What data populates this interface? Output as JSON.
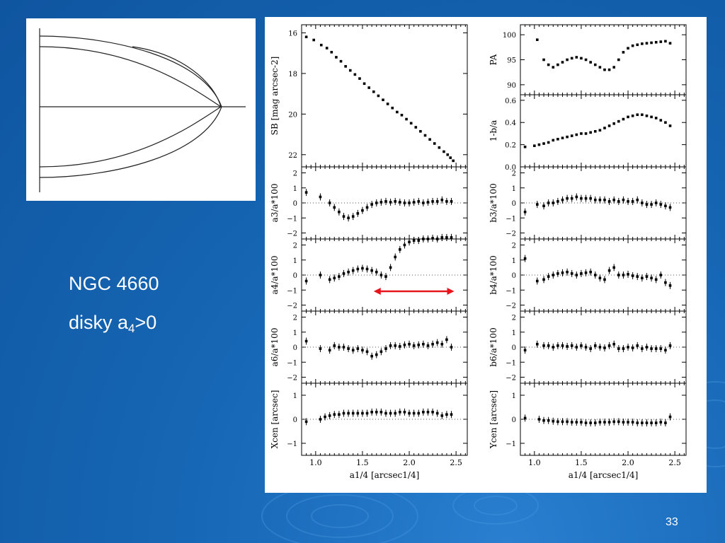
{
  "slide": {
    "caption": {
      "name": "NGC 4660",
      "line2_prefix": "disky a",
      "line2_sub": "4",
      "line2_suffix": ">0"
    },
    "slide_number": "33",
    "colors": {
      "background": "#1667b5",
      "arrow": "#e8141c",
      "text": "#ffffff"
    }
  },
  "x_axis": {
    "label": "a1/4 [arcsec1/4]",
    "ticks": [
      "1.0",
      "1.5",
      "2.0",
      "2.5"
    ]
  },
  "chart_data": [
    {
      "type": "scatter",
      "panel": "SB",
      "ylabel": "SB [mag arcsec-2]",
      "y_inverted": true,
      "ylim": [
        15.6,
        22.6
      ],
      "yticks": [
        "16",
        "18",
        "20",
        "22"
      ],
      "x": [
        0.9,
        0.98,
        1.06,
        1.12,
        1.17,
        1.22,
        1.27,
        1.32,
        1.37,
        1.42,
        1.47,
        1.52,
        1.57,
        1.62,
        1.67,
        1.72,
        1.77,
        1.82,
        1.87,
        1.92,
        1.97,
        2.02,
        2.07,
        2.12,
        2.17,
        2.22,
        2.27,
        2.32,
        2.37,
        2.41,
        2.44,
        2.47
      ],
      "y": [
        16.2,
        16.35,
        16.6,
        16.75,
        16.95,
        17.2,
        17.4,
        17.65,
        17.85,
        18.05,
        18.25,
        18.5,
        18.7,
        18.9,
        19.1,
        19.3,
        19.5,
        19.7,
        19.9,
        20.05,
        20.25,
        20.45,
        20.65,
        20.85,
        21.05,
        21.25,
        21.45,
        21.65,
        21.85,
        22.0,
        22.15,
        22.3
      ]
    },
    {
      "type": "scatter",
      "panel": "PA",
      "ylabel": "PA",
      "ylim": [
        88,
        102
      ],
      "yticks": [
        "90",
        "95",
        "100"
      ],
      "x": [
        1.03,
        1.1,
        1.15,
        1.2,
        1.25,
        1.3,
        1.35,
        1.4,
        1.45,
        1.5,
        1.55,
        1.6,
        1.65,
        1.7,
        1.75,
        1.8,
        1.85,
        1.9,
        1.95,
        2.0,
        2.05,
        2.1,
        2.15,
        2.2,
        2.25,
        2.3,
        2.35,
        2.4,
        2.45
      ],
      "y": [
        99,
        95,
        94,
        93.5,
        94,
        94.5,
        95,
        95.3,
        95.5,
        95.3,
        95,
        94.5,
        94,
        93.5,
        93,
        93,
        93.5,
        95,
        96.5,
        97.3,
        97.8,
        98,
        98.2,
        98.3,
        98.4,
        98.5,
        98.6,
        98.7,
        98.3
      ]
    },
    {
      "type": "scatter",
      "panel": "1-b/a",
      "ylabel": "1-b/a",
      "ylim": [
        0,
        0.65
      ],
      "yticks": [
        "0.0",
        "0.2",
        "0.4",
        "0.6"
      ],
      "x": [
        0.9,
        1.0,
        1.05,
        1.1,
        1.15,
        1.2,
        1.25,
        1.3,
        1.35,
        1.4,
        1.45,
        1.5,
        1.55,
        1.6,
        1.65,
        1.7,
        1.75,
        1.8,
        1.85,
        1.9,
        1.95,
        2.0,
        2.05,
        2.1,
        2.15,
        2.2,
        2.25,
        2.3,
        2.35,
        2.4,
        2.45
      ],
      "y": [
        0.18,
        0.19,
        0.2,
        0.21,
        0.22,
        0.24,
        0.25,
        0.26,
        0.27,
        0.28,
        0.29,
        0.3,
        0.3,
        0.31,
        0.32,
        0.33,
        0.35,
        0.37,
        0.39,
        0.41,
        0.43,
        0.45,
        0.46,
        0.47,
        0.47,
        0.46,
        0.45,
        0.44,
        0.42,
        0.4,
        0.37
      ]
    },
    {
      "type": "scatter",
      "panel": "a3",
      "ylabel": "a3/a*100",
      "ylim": [
        -2.4,
        2.4
      ],
      "yticks": [
        "2",
        "1",
        "0",
        "-1",
        "-2"
      ],
      "x": [
        0.9,
        1.05,
        1.15,
        1.2,
        1.25,
        1.3,
        1.35,
        1.4,
        1.45,
        1.5,
        1.55,
        1.6,
        1.65,
        1.7,
        1.75,
        1.8,
        1.85,
        1.9,
        1.95,
        2.0,
        2.05,
        2.1,
        2.15,
        2.2,
        2.25,
        2.3,
        2.35,
        2.4,
        2.45
      ],
      "y": [
        0.7,
        0.4,
        0,
        -0.3,
        -0.6,
        -0.9,
        -1.0,
        -0.9,
        -0.7,
        -0.5,
        -0.3,
        -0.1,
        0,
        0.05,
        0.1,
        0.05,
        0.1,
        0.05,
        0,
        0,
        0.05,
        0.1,
        0,
        0.05,
        0.1,
        0.1,
        0.2,
        0.1,
        0.1
      ]
    },
    {
      "type": "scatter",
      "panel": "b3",
      "ylabel": "b3/a*100",
      "ylim": [
        -2.4,
        2.4
      ],
      "yticks": [
        "2",
        "1",
        "0",
        "-1",
        "-2"
      ],
      "x": [
        0.9,
        1.03,
        1.1,
        1.15,
        1.2,
        1.25,
        1.3,
        1.35,
        1.4,
        1.45,
        1.5,
        1.55,
        1.6,
        1.65,
        1.7,
        1.75,
        1.8,
        1.85,
        1.9,
        1.95,
        2.0,
        2.05,
        2.1,
        2.15,
        2.2,
        2.25,
        2.3,
        2.35,
        2.4,
        2.45
      ],
      "y": [
        -0.6,
        -0.1,
        -0.2,
        0,
        0,
        0.1,
        0.2,
        0.3,
        0.3,
        0.4,
        0.3,
        0.3,
        0.3,
        0.2,
        0.2,
        0.2,
        0.1,
        0.2,
        0.1,
        0.2,
        0.1,
        0.1,
        0.2,
        0,
        -0.1,
        -0.1,
        0,
        -0.1,
        -0.2,
        -0.3
      ]
    },
    {
      "type": "scatter",
      "panel": "a4",
      "ylabel": "a4/a*100",
      "ylim": [
        -2.4,
        2.4
      ],
      "yticks": [
        "2",
        "1",
        "0",
        "-1",
        "-2"
      ],
      "x": [
        0.9,
        1.05,
        1.15,
        1.2,
        1.25,
        1.3,
        1.35,
        1.4,
        1.45,
        1.5,
        1.55,
        1.6,
        1.65,
        1.7,
        1.75,
        1.8,
        1.85,
        1.9,
        1.95,
        2.0,
        2.05,
        2.1,
        2.15,
        2.2,
        2.25,
        2.3,
        2.35,
        2.4,
        2.45
      ],
      "y": [
        -0.4,
        0,
        -0.3,
        -0.2,
        -0.1,
        0.1,
        0.2,
        0.3,
        0.4,
        0.45,
        0.4,
        0.3,
        0.2,
        0,
        -0.1,
        0.5,
        1.2,
        1.7,
        2.0,
        2.2,
        2.3,
        2.3,
        2.4,
        2.4,
        2.45,
        2.4,
        2.5,
        2.5,
        2.5
      ]
    },
    {
      "type": "scatter",
      "panel": "b4",
      "ylabel": "b4/a*100",
      "ylim": [
        -2.4,
        2.4
      ],
      "yticks": [
        "2",
        "1",
        "0",
        "-1",
        "-2"
      ],
      "x": [
        0.9,
        1.03,
        1.1,
        1.15,
        1.2,
        1.25,
        1.3,
        1.35,
        1.4,
        1.45,
        1.5,
        1.55,
        1.6,
        1.65,
        1.7,
        1.75,
        1.8,
        1.85,
        1.9,
        1.95,
        2.0,
        2.05,
        2.1,
        2.15,
        2.2,
        2.25,
        2.3,
        2.35,
        2.4,
        2.45
      ],
      "y": [
        1.1,
        -0.4,
        -0.3,
        -0.1,
        0,
        0.1,
        0.15,
        0.2,
        0.1,
        0,
        0.1,
        0.15,
        0.2,
        0,
        -0.2,
        -0.3,
        0.3,
        0.5,
        0,
        0,
        0.05,
        -0.05,
        -0.1,
        -0.2,
        -0.1,
        -0.2,
        -0.3,
        0,
        -0.5,
        -0.7
      ]
    },
    {
      "type": "scatter",
      "panel": "a6",
      "ylabel": "a6/a*100",
      "ylim": [
        -2.4,
        2.4
      ],
      "yticks": [
        "2",
        "1",
        "0",
        "-1",
        "-2"
      ],
      "x": [
        0.9,
        1.05,
        1.15,
        1.2,
        1.25,
        1.3,
        1.35,
        1.4,
        1.45,
        1.5,
        1.55,
        1.6,
        1.65,
        1.7,
        1.75,
        1.8,
        1.85,
        1.9,
        1.95,
        2.0,
        2.05,
        2.1,
        2.15,
        2.2,
        2.25,
        2.3,
        2.35,
        2.4,
        2.45
      ],
      "y": [
        0.4,
        -0.1,
        -0.2,
        0.1,
        0,
        0,
        -0.1,
        -0.2,
        -0.1,
        -0.2,
        -0.3,
        -0.6,
        -0.5,
        -0.3,
        -0.1,
        0.1,
        0.1,
        0.05,
        0.15,
        0.2,
        0.1,
        0.15,
        0.2,
        0.1,
        0.2,
        0.3,
        0.2,
        0.5,
        0
      ]
    },
    {
      "type": "scatter",
      "panel": "b6",
      "ylabel": "b6/a*100",
      "ylim": [
        -2.4,
        2.4
      ],
      "yticks": [
        "2",
        "1",
        "0",
        "-1",
        "-2"
      ],
      "x": [
        0.9,
        1.03,
        1.1,
        1.15,
        1.2,
        1.25,
        1.3,
        1.35,
        1.4,
        1.45,
        1.5,
        1.55,
        1.6,
        1.65,
        1.7,
        1.75,
        1.8,
        1.85,
        1.9,
        1.95,
        2.0,
        2.05,
        2.1,
        2.15,
        2.2,
        2.25,
        2.3,
        2.35,
        2.4,
        2.45
      ],
      "y": [
        -0.2,
        0.2,
        0.1,
        0.1,
        0,
        0.1,
        0.1,
        0.05,
        0.1,
        0,
        0.1,
        0,
        -0.1,
        0.1,
        0,
        -0.05,
        0.1,
        0.2,
        -0.1,
        -0.1,
        0,
        -0.05,
        0.1,
        -0.1,
        0,
        -0.1,
        -0.1,
        -0.1,
        -0.2,
        0.1
      ]
    },
    {
      "type": "scatter",
      "panel": "Xcen",
      "ylabel": "Xcen [arcsec]",
      "ylim": [
        -1.5,
        1.5
      ],
      "yticks": [
        "1",
        "0",
        "-1"
      ],
      "x": [
        0.9,
        1.05,
        1.1,
        1.15,
        1.2,
        1.25,
        1.3,
        1.35,
        1.4,
        1.45,
        1.5,
        1.55,
        1.6,
        1.65,
        1.7,
        1.75,
        1.8,
        1.85,
        1.9,
        1.95,
        2.0,
        2.05,
        2.1,
        2.15,
        2.2,
        2.25,
        2.3,
        2.35,
        2.4,
        2.45
      ],
      "y": [
        -0.1,
        0,
        0.1,
        0.15,
        0.2,
        0.2,
        0.25,
        0.25,
        0.25,
        0.25,
        0.25,
        0.25,
        0.3,
        0.3,
        0.3,
        0.25,
        0.25,
        0.25,
        0.3,
        0.3,
        0.25,
        0.25,
        0.25,
        0.3,
        0.3,
        0.3,
        0.25,
        0.15,
        0.2,
        0.2
      ]
    },
    {
      "type": "scatter",
      "panel": "Ycen",
      "ylabel": "Ycen [arcsec]",
      "ylim": [
        -1.5,
        1.5
      ],
      "yticks": [
        "1",
        "0",
        "-1"
      ],
      "x": [
        0.9,
        1.05,
        1.1,
        1.15,
        1.2,
        1.25,
        1.3,
        1.35,
        1.4,
        1.45,
        1.5,
        1.55,
        1.6,
        1.65,
        1.7,
        1.75,
        1.8,
        1.85,
        1.9,
        1.95,
        2.0,
        2.05,
        2.1,
        2.15,
        2.2,
        2.25,
        2.3,
        2.35,
        2.4,
        2.45
      ],
      "y": [
        0.05,
        0,
        -0.05,
        -0.05,
        -0.08,
        -0.1,
        -0.1,
        -0.1,
        -0.12,
        -0.12,
        -0.12,
        -0.15,
        -0.15,
        -0.15,
        -0.12,
        -0.12,
        -0.12,
        -0.1,
        -0.1,
        -0.12,
        -0.12,
        -0.12,
        -0.15,
        -0.15,
        -0.15,
        -0.15,
        -0.15,
        -0.12,
        -0.15,
        0.1
      ]
    }
  ]
}
